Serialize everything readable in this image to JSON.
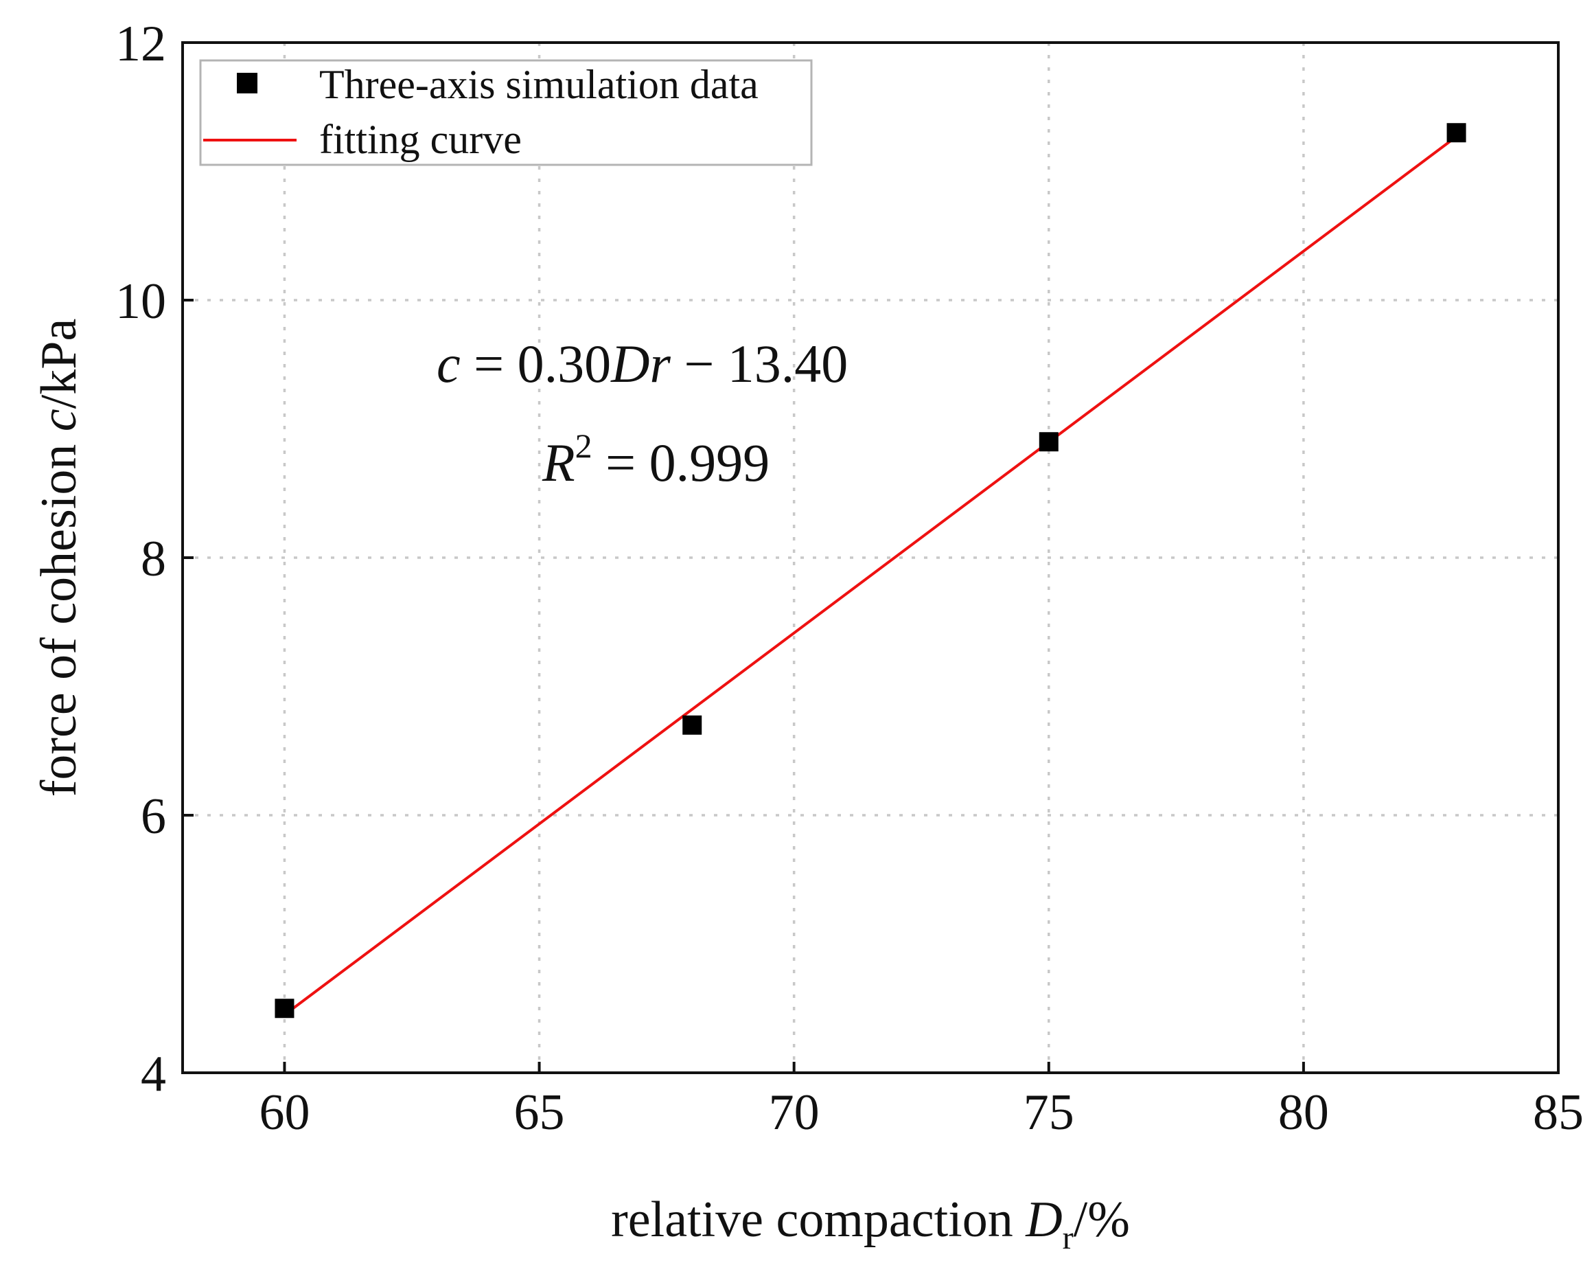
{
  "chart_data": {
    "type": "scatter",
    "x_axis": {
      "label_prefix": "relative compaction ",
      "label_var": "D",
      "label_sub": "r",
      "label_suffix": "/%",
      "range": [
        58,
        85
      ],
      "ticks": [
        60,
        65,
        70,
        75,
        80,
        85
      ],
      "tick_labels": [
        "60",
        "65",
        "70",
        "75",
        "80",
        "85"
      ]
    },
    "y_axis": {
      "label_prefix": "force of cohesion ",
      "label_var": "c",
      "label_suffix": "/kPa",
      "range": [
        4,
        12
      ],
      "ticks": [
        4,
        6,
        8,
        10,
        12
      ],
      "tick_labels": [
        "4",
        "6",
        "8",
        "10",
        "12"
      ]
    },
    "grid": true,
    "series": [
      {
        "name": "Three-axis simulation data",
        "kind": "scatter",
        "marker": "square",
        "color": "#000000",
        "x": [
          60,
          68,
          75,
          83
        ],
        "y": [
          4.5,
          6.7,
          8.9,
          11.3
        ]
      },
      {
        "name": "fitting curve",
        "kind": "line",
        "color": "#ee1111",
        "x": [
          60,
          83
        ],
        "y": [
          4.45,
          11.27
        ]
      }
    ],
    "legend": {
      "position": "top-left",
      "entries": [
        "Three-axis simulation data",
        "fitting curve"
      ]
    },
    "annotations": {
      "equation": {
        "var_c": "c",
        "eq_mid": " = 0.30",
        "var_dr": "Dr",
        "eq_tail": " − 13.40"
      },
      "r_squared": {
        "var_r": "R",
        "sup": "2",
        "value": " = 0.999"
      }
    },
    "colors": {
      "markers": "#000000",
      "fit_line": "#ee1111",
      "grid": "#c8c8c8",
      "axes": "#111111"
    }
  }
}
